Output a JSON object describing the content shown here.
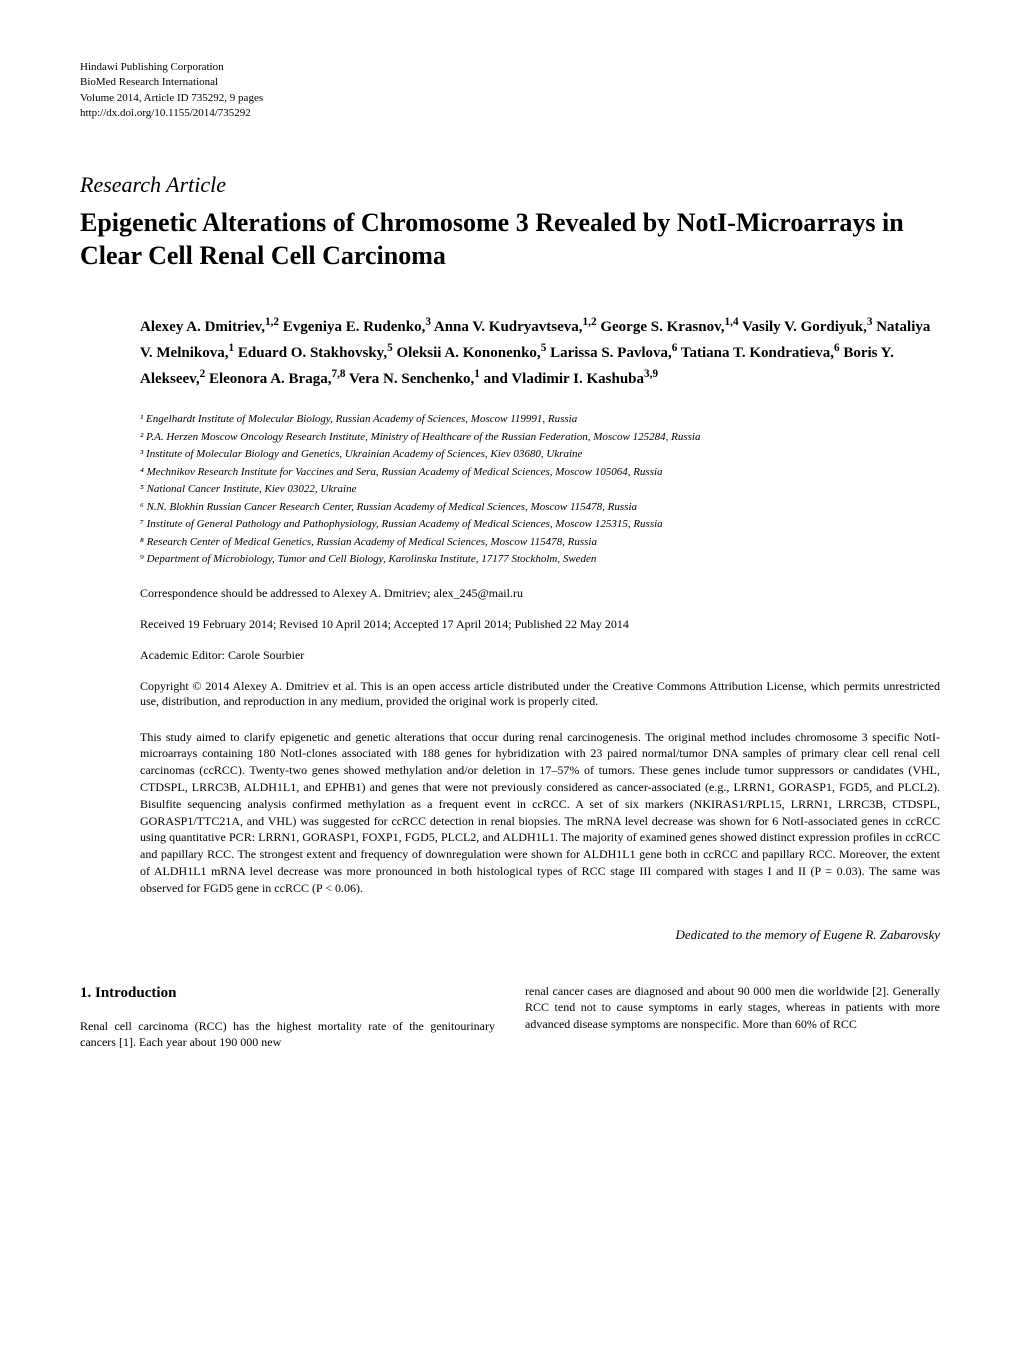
{
  "pub_info": {
    "line1": "Hindawi Publishing Corporation",
    "line2": "BioMed Research International",
    "line3": "Volume 2014, Article ID 735292, 9 pages",
    "line4": "http://dx.doi.org/10.1155/2014/735292"
  },
  "article_type": "Research Article",
  "title": "Epigenetic Alterations of Chromosome 3 Revealed by NotI-Microarrays in Clear Cell Renal Cell Carcinoma",
  "authors_html": "Alexey A. Dmitriev,<sup>1,2</sup> Evgeniya E. Rudenko,<sup>3</sup> Anna V. Kudryavtseva,<sup>1,2</sup> George S. Krasnov,<sup>1,4</sup> Vasily V. Gordiyuk,<sup>3</sup> Nataliya V. Melnikova,<sup>1</sup> Eduard O. Stakhovsky,<sup>5</sup> Oleksii A. Kononenko,<sup>5</sup> Larissa S. Pavlova,<sup>6</sup> Tatiana T. Kondratieva,<sup>6</sup> Boris Y. Alekseev,<sup>2</sup> Eleonora A. Braga,<sup>7,8</sup> Vera N. Senchenko,<sup>1</sup> and Vladimir I. Kashuba<sup>3,9</sup>",
  "affiliations": [
    "¹ Engelhardt Institute of Molecular Biology, Russian Academy of Sciences, Moscow 119991, Russia",
    "² P.A. Herzen Moscow Oncology Research Institute, Ministry of Healthcare of the Russian Federation, Moscow 125284, Russia",
    "³ Institute of Molecular Biology and Genetics, Ukrainian Academy of Sciences, Kiev 03680, Ukraine",
    "⁴ Mechnikov Research Institute for Vaccines and Sera, Russian Academy of Medical Sciences, Moscow 105064, Russia",
    "⁵ National Cancer Institute, Kiev 03022, Ukraine",
    "⁶ N.N. Blokhin Russian Cancer Research Center, Russian Academy of Medical Sciences, Moscow 115478, Russia",
    "⁷ Institute of General Pathology and Pathophysiology, Russian Academy of Medical Sciences, Moscow 125315, Russia",
    "⁸ Research Center of Medical Genetics, Russian Academy of Medical Sciences, Moscow 115478, Russia",
    "⁹ Department of Microbiology, Tumor and Cell Biology, Karolinska Institute, 17177 Stockholm, Sweden"
  ],
  "correspondence": "Correspondence should be addressed to Alexey A. Dmitriev; alex_245@mail.ru",
  "dates": "Received 19 February 2014; Revised 10 April 2014; Accepted 17 April 2014; Published 22 May 2014",
  "editor": "Academic Editor: Carole Sourbier",
  "copyright": "Copyright © 2014 Alexey A. Dmitriev et al. This is an open access article distributed under the Creative Commons Attribution License, which permits unrestricted use, distribution, and reproduction in any medium, provided the original work is properly cited.",
  "abstract": "This study aimed to clarify epigenetic and genetic alterations that occur during renal carcinogenesis. The original method includes chromosome 3 specific NotI-microarrays containing 180 NotI-clones associated with 188 genes for hybridization with 23 paired normal/tumor DNA samples of primary clear cell renal cell carcinomas (ccRCC). Twenty-two genes showed methylation and/or deletion in 17–57% of tumors. These genes include tumor suppressors or candidates (VHL, CTDSPL, LRRC3B, ALDH1L1, and EPHB1) and genes that were not previously considered as cancer-associated (e.g., LRRN1, GORASP1, FGD5, and PLCL2). Bisulfite sequencing analysis confirmed methylation as a frequent event in ccRCC. A set of six markers (NKIRAS1/RPL15, LRRN1, LRRC3B, CTDSPL, GORASP1/TTC21A, and VHL) was suggested for ccRCC detection in renal biopsies. The mRNA level decrease was shown for 6 NotI-associated genes in ccRCC using quantitative PCR: LRRN1, GORASP1, FOXP1, FGD5, PLCL2, and ALDH1L1. The majority of examined genes showed distinct expression profiles in ccRCC and papillary RCC. The strongest extent and frequency of downregulation were shown for ALDH1L1 gene both in ccRCC and papillary RCC. Moreover, the extent of ALDH1L1 mRNA level decrease was more pronounced in both histological types of RCC stage III compared with stages I and II (P = 0.03). The same was observed for FGD5 gene in ccRCC (P < 0.06).",
  "dedication": "Dedicated to the memory of Eugene R. Zabarovsky",
  "section1": {
    "heading": "1. Introduction",
    "col1": "Renal cell carcinoma (RCC) has the highest mortality rate of the genitourinary cancers [1]. Each year about 190 000 new",
    "col2": "renal cancer cases are diagnosed and about 90 000 men die worldwide [2]. Generally RCC tend not to cause symptoms in early stages, whereas in patients with more advanced disease symptoms are nonspecific. More than 60% of RCC"
  }
}
